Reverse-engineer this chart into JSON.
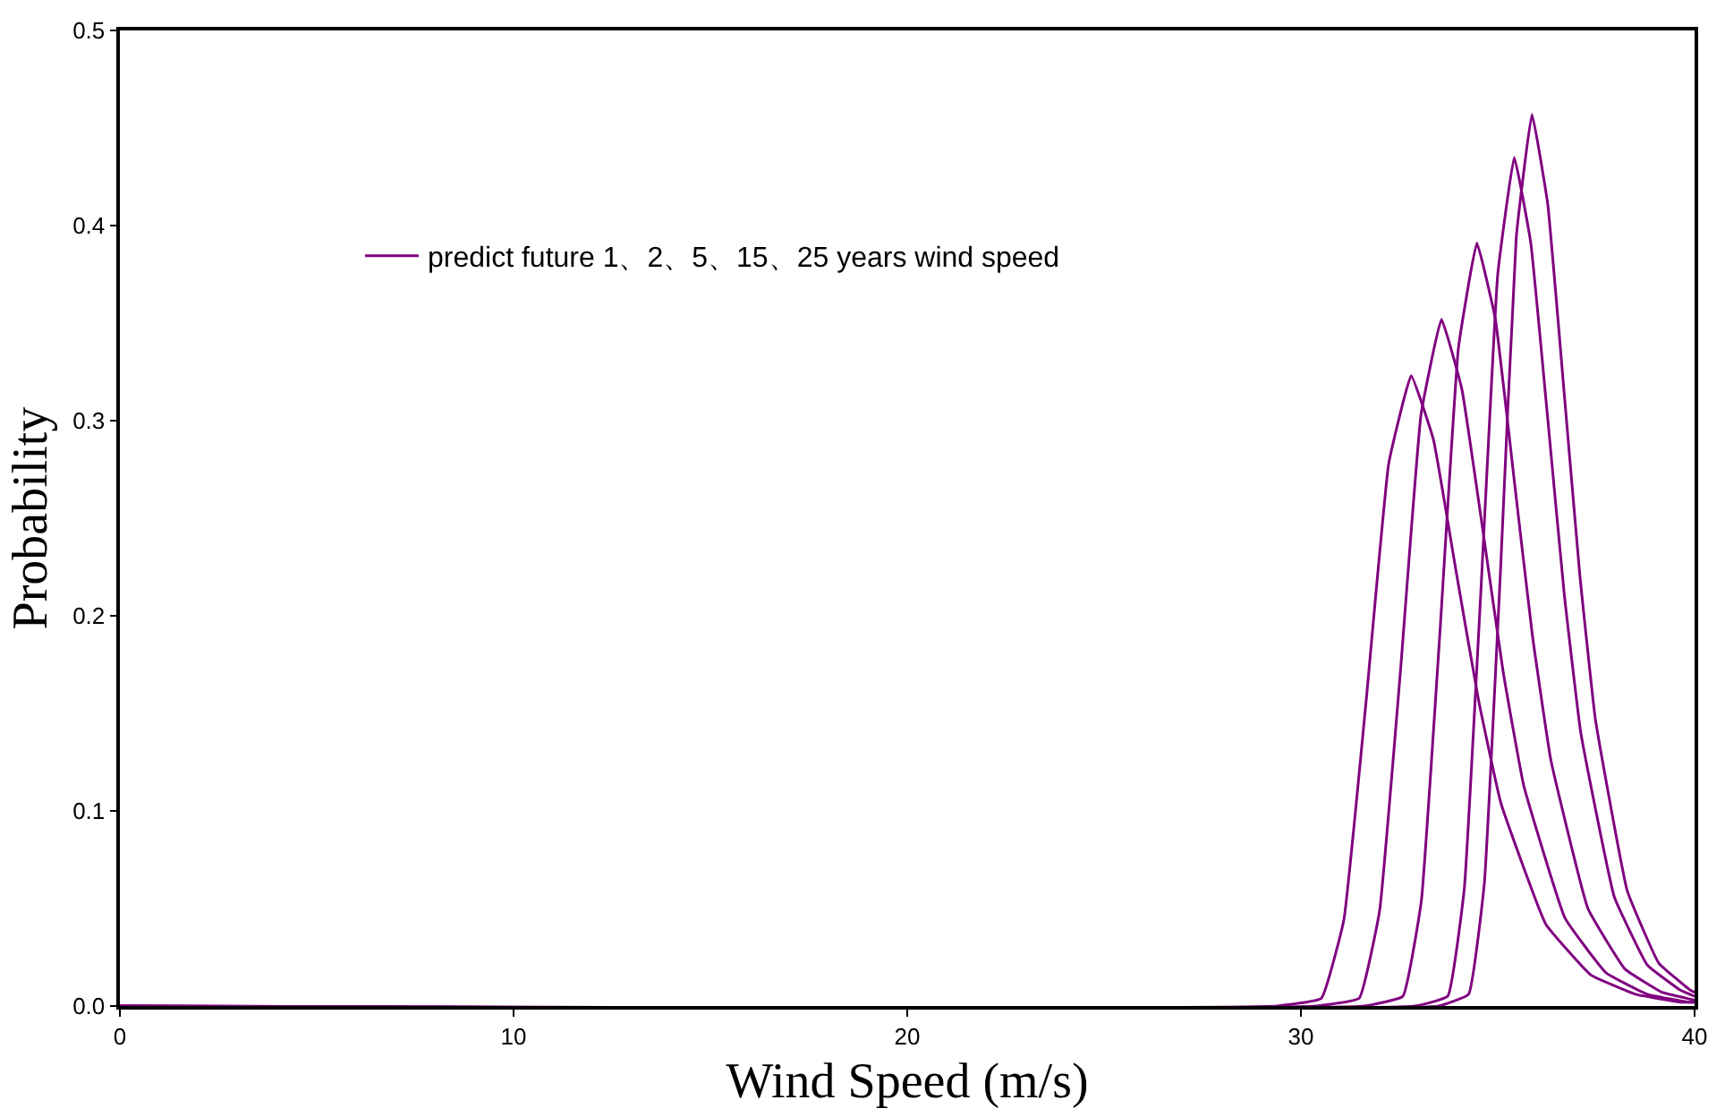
{
  "chart_data": {
    "type": "line",
    "xlabel": "Wind Speed (m/s)",
    "ylabel": "Probability",
    "xlim": [
      0,
      40
    ],
    "xticks": [
      0,
      10,
      20,
      30,
      40
    ],
    "ylim": [
      0,
      0.5
    ],
    "yticks": [
      {
        "value": 0,
        "label": "0.0"
      },
      0.1,
      0.2,
      0.3,
      0.4,
      0.5
    ],
    "legend": "top left",
    "marker": "none",
    "line_style": "solid",
    "series": [
      {
        "name": "predict future 1、2、5、15、25 years wind speed",
        "color": "#800080",
        "x": [
          0,
          29.4,
          30.52,
          31.09,
          31.66,
          32.23,
          32.8,
          33.37,
          33.94,
          34.51,
          35.08,
          36.22,
          37.36,
          38.5,
          39.64,
          40
        ],
        "values": [
          0,
          0,
          0.004,
          0.044,
          0.157,
          0.278,
          0.323,
          0.29,
          0.223,
          0.157,
          0.104,
          0.042,
          0.016,
          0.006,
          0.002,
          0.002
        ]
      },
      {
        "color": "#800080",
        "x": [
          0,
          30.4,
          31.48,
          32.0,
          32.53,
          33.05,
          33.57,
          34.09,
          34.62,
          35.14,
          35.66,
          36.71,
          37.75,
          38.8,
          39.84,
          40
        ],
        "values": [
          0,
          0,
          0.004,
          0.049,
          0.172,
          0.303,
          0.352,
          0.316,
          0.244,
          0.171,
          0.113,
          0.045,
          0.017,
          0.006,
          0.002,
          0.002
        ]
      },
      {
        "color": "#800080",
        "x": [
          0,
          31.6,
          32.59,
          33.06,
          33.53,
          34.0,
          34.47,
          34.94,
          35.41,
          35.88,
          36.35,
          37.29,
          38.23,
          39.18,
          40
        ],
        "values": [
          0,
          0,
          0.005,
          0.054,
          0.191,
          0.337,
          0.391,
          0.352,
          0.271,
          0.19,
          0.126,
          0.05,
          0.019,
          0.007,
          0.003
        ]
      },
      {
        "color": "#800080",
        "x": [
          0,
          32.9,
          33.73,
          34.15,
          34.57,
          35.0,
          35.42,
          35.84,
          36.27,
          36.69,
          37.11,
          37.96,
          38.8,
          39.65,
          40
        ],
        "values": [
          0,
          0,
          0.005,
          0.06,
          0.212,
          0.375,
          0.435,
          0.391,
          0.301,
          0.211,
          0.14,
          0.056,
          0.021,
          0.008,
          0.005
        ]
      },
      {
        "color": "#800080",
        "x": [
          0,
          33.5,
          34.26,
          34.66,
          35.07,
          35.47,
          35.87,
          36.27,
          36.68,
          37.08,
          37.48,
          38.29,
          39.09,
          39.9,
          40
        ],
        "values": [
          0,
          0,
          0.006,
          0.063,
          0.223,
          0.394,
          0.457,
          0.411,
          0.316,
          0.222,
          0.147,
          0.059,
          0.022,
          0.008,
          0.007
        ]
      }
    ]
  }
}
